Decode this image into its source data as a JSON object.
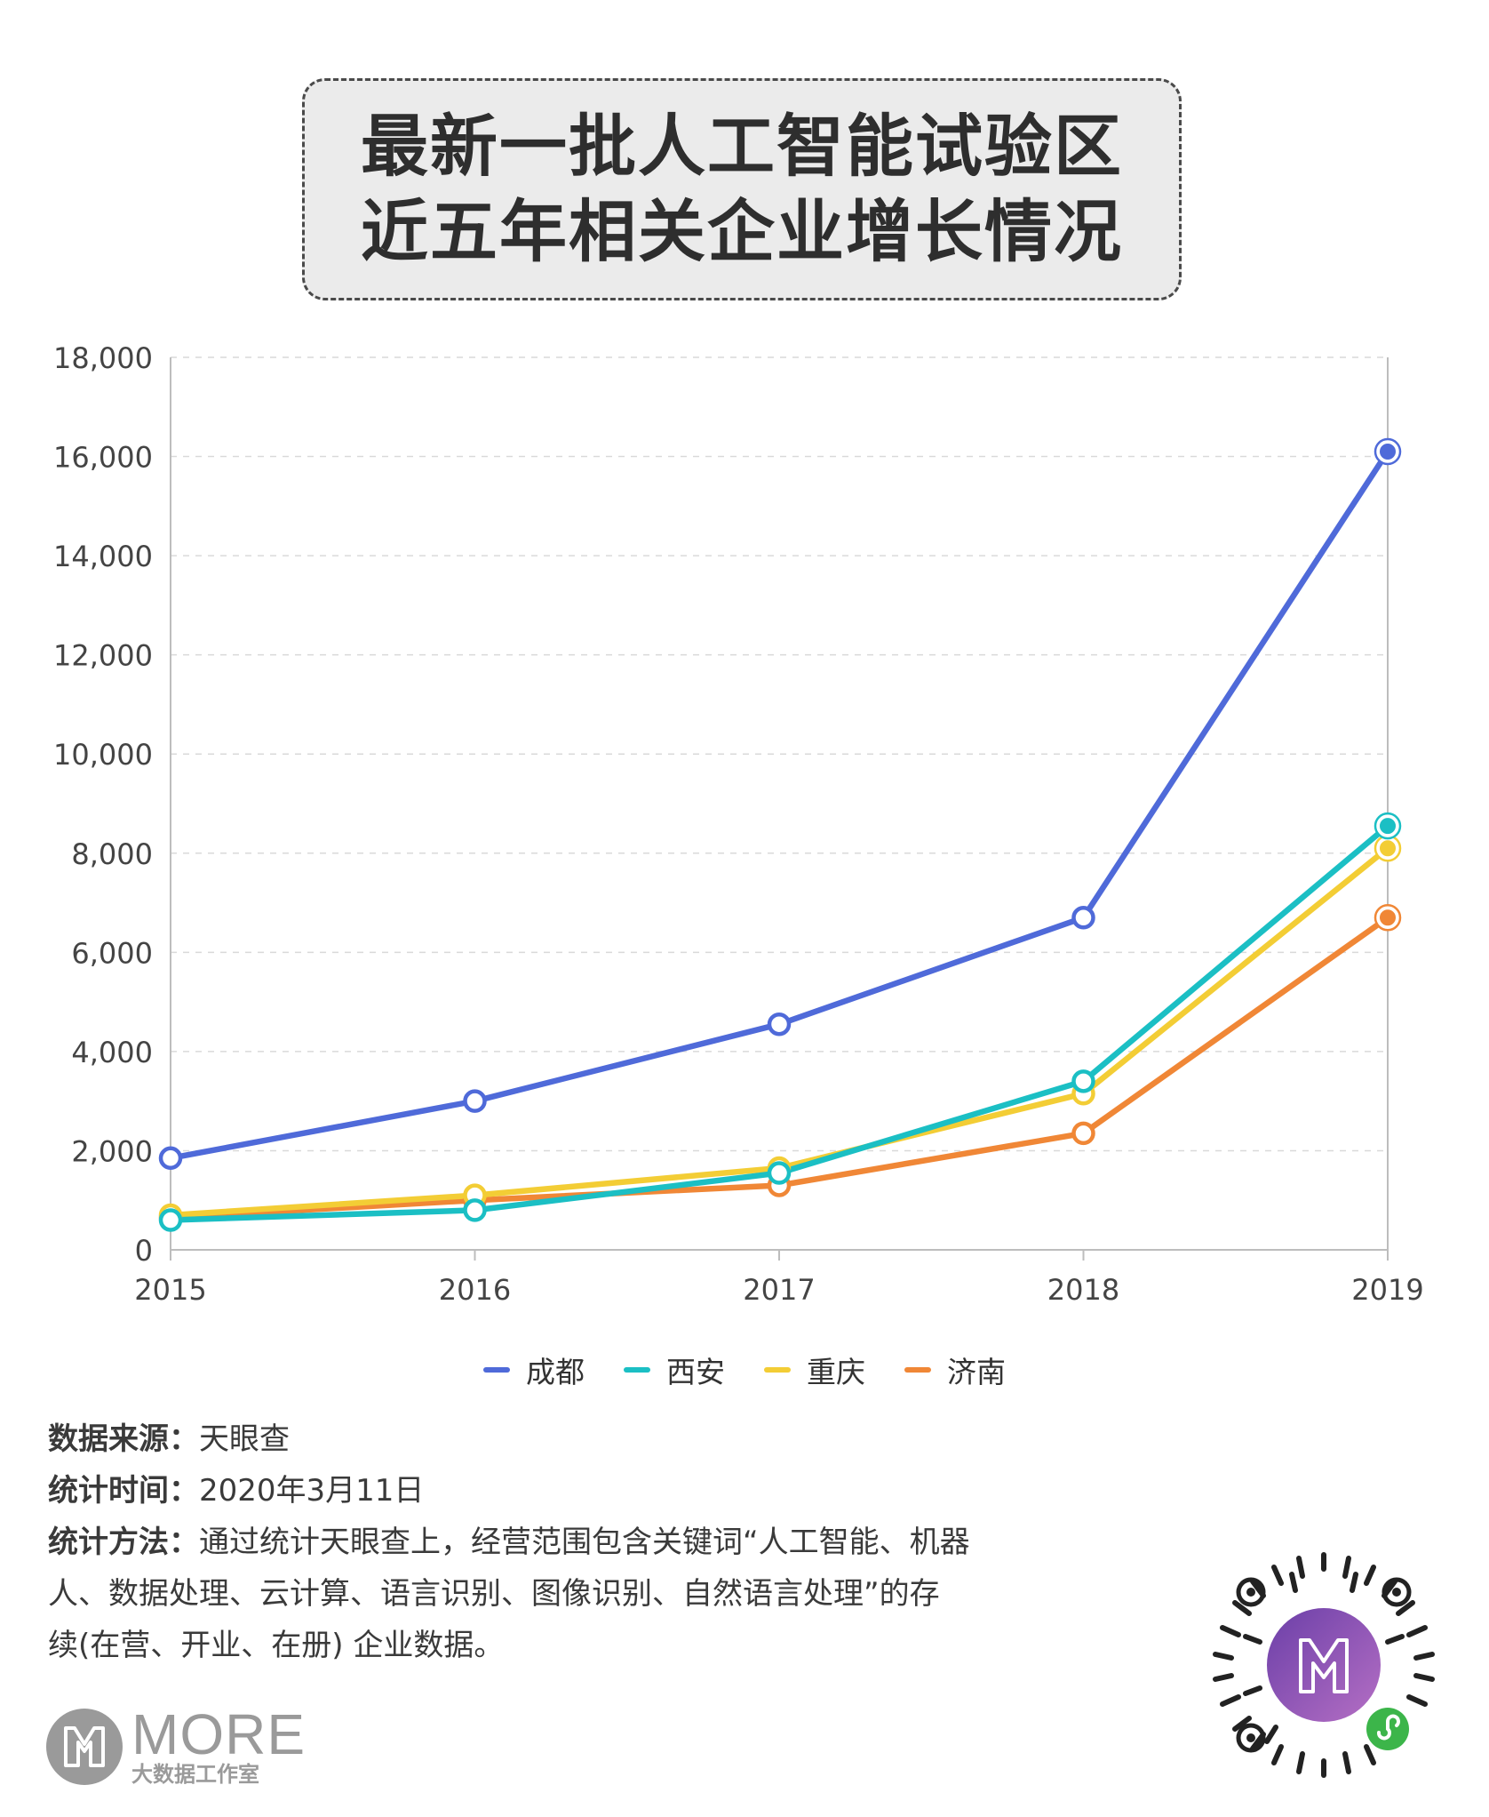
{
  "title": {
    "line1": "最新一批人工智能试验区",
    "line2": "近五年相关企业增长情况"
  },
  "chart_data": {
    "type": "line",
    "categories": [
      "2015",
      "2016",
      "2017",
      "2018",
      "2019"
    ],
    "series": [
      {
        "name": "成都",
        "color": "#4f6ad9",
        "values": [
          1850,
          3000,
          4550,
          6700,
          16100
        ]
      },
      {
        "name": "西安",
        "color": "#1bbfc4",
        "values": [
          600,
          800,
          1550,
          3400,
          8550
        ]
      },
      {
        "name": "重庆",
        "color": "#f3cd35",
        "values": [
          700,
          1100,
          1650,
          3150,
          8100
        ]
      },
      {
        "name": "济南",
        "color": "#f08736",
        "values": [
          650,
          1000,
          1300,
          2350,
          6700
        ]
      }
    ],
    "ylim": [
      0,
      18000
    ],
    "yticks": [
      0,
      2000,
      4000,
      6000,
      8000,
      10000,
      12000,
      14000,
      16000,
      18000
    ],
    "ytick_labels": [
      "0",
      "2,000",
      "4,000",
      "6,000",
      "8,000",
      "10,000",
      "12,000",
      "14,000",
      "16,000",
      "18,000"
    ],
    "grid": true,
    "legend": "bottom"
  },
  "notes": {
    "source_key": "数据来源：",
    "source_val": "天眼查",
    "time_key": "统计时间：",
    "time_val": "2020年3月11日",
    "method_key": "统计方法：",
    "method_val_1": "通过统计天眼查上，经营范围包含关键词“人工智能、机器",
    "method_val_2": "人、数据处理、云计算、语言识别、图像识别、自然语言处理”的存",
    "method_val_3": "续(在营、开业、在册) 企业数据。"
  },
  "logo": {
    "word": "MORE",
    "sub": "大数据工作室"
  }
}
